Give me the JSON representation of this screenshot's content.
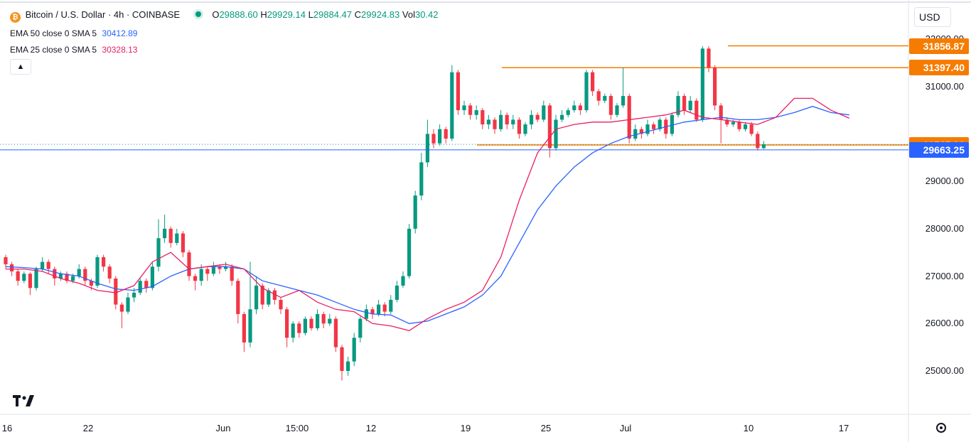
{
  "header": {
    "symbol": "Bitcoin / U.S. Dollar · 4h · COINBASE",
    "o_label": "O",
    "o": "29888.60",
    "h_label": "H",
    "h": "29929.14",
    "l_label": "L",
    "l": "29884.47",
    "c_label": "C",
    "c": "29924.83",
    "vol_label": "Vol",
    "vol": "30.42"
  },
  "indicators": [
    {
      "label": "EMA 50 close 0 SMA 5",
      "value": "30412.89",
      "color": "#2962ff"
    },
    {
      "label": "EMA 25 close 0 SMA 5",
      "value": "30328.13",
      "color": "#e91e63"
    }
  ],
  "currency": "USD",
  "price_labels": [
    {
      "value": "31856.87",
      "color": "#f57c00"
    },
    {
      "value": "31397.40",
      "color": "#f57c00"
    },
    {
      "value": "29767.00",
      "color": "#f57c00"
    },
    {
      "value": "29663.25",
      "color": "#2962ff"
    }
  ],
  "colors": {
    "up": "#089981",
    "down": "#f23645",
    "ema50": "#2962ff",
    "ema25": "#e91e63",
    "level": "#f57c00"
  },
  "chart_data": {
    "type": "candlestick",
    "y_ticks": [
      "32000.00",
      "31000.00",
      "29000.00",
      "28000.00",
      "27000.00",
      "26000.00",
      "25000.00"
    ],
    "x_ticks": [
      "16",
      "22",
      "Jun",
      "15:00",
      "12",
      "19",
      "25",
      "Jul",
      "10",
      "17"
    ],
    "ylim": [
      24400,
      32500
    ],
    "grid": false,
    "horizontal_levels": [
      31856.87,
      31397.4,
      29767.0
    ],
    "last_price_line": 29663.25,
    "ema_50": [
      [
        0,
        27200
      ],
      [
        3,
        27180
      ],
      [
        6,
        27150
      ],
      [
        9,
        27050
      ],
      [
        12,
        27000
      ],
      [
        15,
        26850
      ],
      [
        18,
        26730
      ],
      [
        21,
        26700
      ],
      [
        24,
        26780
      ],
      [
        27,
        27000
      ],
      [
        30,
        27150
      ],
      [
        33,
        27200
      ],
      [
        36,
        27200
      ],
      [
        39,
        27150
      ],
      [
        42,
        26900
      ],
      [
        45,
        26800
      ],
      [
        48,
        26700
      ],
      [
        51,
        26600
      ],
      [
        54,
        26450
      ],
      [
        57,
        26300
      ],
      [
        60,
        26200
      ],
      [
        63,
        26180
      ],
      [
        66,
        26000
      ],
      [
        69,
        26050
      ],
      [
        72,
        26200
      ],
      [
        75,
        26350
      ],
      [
        78,
        26600
      ],
      [
        81,
        27000
      ],
      [
        84,
        27700
      ],
      [
        87,
        28400
      ],
      [
        90,
        28900
      ],
      [
        93,
        29300
      ],
      [
        96,
        29600
      ],
      [
        99,
        29800
      ],
      [
        102,
        29950
      ],
      [
        105,
        30050
      ],
      [
        108,
        30150
      ],
      [
        111,
        30250
      ],
      [
        114,
        30300
      ],
      [
        117,
        30350
      ],
      [
        120,
        30300
      ],
      [
        123,
        30300
      ],
      [
        126,
        30350
      ],
      [
        129,
        30450
      ],
      [
        132,
        30580
      ],
      [
        135,
        30450
      ],
      [
        138,
        30400
      ]
    ],
    "ema_25": [
      [
        0,
        27150
      ],
      [
        3,
        27150
      ],
      [
        6,
        27100
      ],
      [
        9,
        26950
      ],
      [
        12,
        26850
      ],
      [
        15,
        26700
      ],
      [
        18,
        26650
      ],
      [
        21,
        26800
      ],
      [
        24,
        27300
      ],
      [
        27,
        27500
      ],
      [
        30,
        27150
      ],
      [
        33,
        27200
      ],
      [
        36,
        27250
      ],
      [
        39,
        27150
      ],
      [
        42,
        26750
      ],
      [
        45,
        26550
      ],
      [
        48,
        26700
      ],
      [
        51,
        26450
      ],
      [
        54,
        26300
      ],
      [
        57,
        26250
      ],
      [
        60,
        26000
      ],
      [
        63,
        25950
      ],
      [
        66,
        25850
      ],
      [
        69,
        26100
      ],
      [
        72,
        26300
      ],
      [
        75,
        26450
      ],
      [
        78,
        26700
      ],
      [
        81,
        27400
      ],
      [
        84,
        28600
      ],
      [
        87,
        29600
      ],
      [
        90,
        30100
      ],
      [
        93,
        30200
      ],
      [
        96,
        30250
      ],
      [
        99,
        30250
      ],
      [
        102,
        30300
      ],
      [
        105,
        30350
      ],
      [
        108,
        30400
      ],
      [
        111,
        30500
      ],
      [
        114,
        30350
      ],
      [
        117,
        30300
      ],
      [
        120,
        30250
      ],
      [
        123,
        30200
      ],
      [
        126,
        30350
      ],
      [
        129,
        30750
      ],
      [
        132,
        30750
      ],
      [
        135,
        30500
      ],
      [
        138,
        30330
      ]
    ],
    "candles": [
      [
        27400,
        27250,
        27450,
        27150
      ],
      [
        27250,
        27100,
        27300,
        27000
      ],
      [
        27100,
        26900,
        27150,
        26800
      ],
      [
        26900,
        27050,
        27100,
        26850
      ],
      [
        27050,
        26750,
        27080,
        26600
      ],
      [
        26750,
        27150,
        27200,
        26700
      ],
      [
        27150,
        27300,
        27400,
        27100
      ],
      [
        27300,
        27150,
        27350,
        27050
      ],
      [
        27150,
        26950,
        27200,
        26800
      ],
      [
        26950,
        27050,
        27100,
        26900
      ],
      [
        27050,
        26900,
        27100,
        26850
      ],
      [
        26900,
        27000,
        27050,
        26850
      ],
      [
        27000,
        27150,
        27250,
        26950
      ],
      [
        27150,
        26900,
        27200,
        26800
      ],
      [
        26900,
        26800,
        26950,
        26700
      ],
      [
        26800,
        27400,
        27450,
        26750
      ],
      [
        27400,
        27200,
        27450,
        27100
      ],
      [
        27200,
        26950,
        27250,
        26850
      ],
      [
        26950,
        26400,
        27000,
        26300
      ],
      [
        26400,
        26250,
        26450,
        25900
      ],
      [
        26250,
        26550,
        26650,
        26200
      ],
      [
        26550,
        26650,
        26750,
        26450
      ],
      [
        26650,
        26900,
        26950,
        26600
      ],
      [
        26900,
        26750,
        26950,
        26650
      ],
      [
        26750,
        27200,
        27300,
        26700
      ],
      [
        27200,
        27800,
        28200,
        27100
      ],
      [
        27800,
        28000,
        28300,
        27700
      ],
      [
        28000,
        27700,
        28050,
        27600
      ],
      [
        27700,
        27900,
        28000,
        27650
      ],
      [
        27900,
        27500,
        27950,
        27400
      ],
      [
        27500,
        27000,
        27550,
        26900
      ],
      [
        27000,
        26900,
        27050,
        26700
      ],
      [
        26900,
        27150,
        27250,
        26800
      ],
      [
        27150,
        27050,
        27200,
        26900
      ],
      [
        27050,
        27200,
        27300,
        27000
      ],
      [
        27200,
        27150,
        27250,
        27050
      ],
      [
        27150,
        27200,
        27300,
        27100
      ],
      [
        27200,
        26900,
        27250,
        26800
      ],
      [
        26900,
        26200,
        26950,
        26000
      ],
      [
        26200,
        25600,
        26250,
        25400
      ],
      [
        25600,
        26300,
        27300,
        25500
      ],
      [
        26300,
        26800,
        27000,
        26200
      ],
      [
        26800,
        26400,
        26850,
        26300
      ],
      [
        26400,
        26700,
        26750,
        26350
      ],
      [
        26700,
        26500,
        26750,
        26400
      ],
      [
        26500,
        26300,
        26550,
        26200
      ],
      [
        26300,
        25700,
        26350,
        25500
      ],
      [
        25700,
        26000,
        26050,
        25600
      ],
      [
        26000,
        25800,
        26050,
        25700
      ],
      [
        25800,
        26100,
        26150,
        25750
      ],
      [
        26100,
        25900,
        26150,
        25850
      ],
      [
        25900,
        26200,
        26300,
        25850
      ],
      [
        26200,
        26000,
        26250,
        25900
      ],
      [
        26000,
        26100,
        26200,
        25950
      ],
      [
        26100,
        25500,
        26150,
        25400
      ],
      [
        25500,
        25000,
        25550,
        24800
      ],
      [
        25000,
        25200,
        25300,
        24900
      ],
      [
        25200,
        25700,
        25800,
        25100
      ],
      [
        25700,
        26100,
        26150,
        25600
      ],
      [
        26100,
        26300,
        26400,
        26050
      ],
      [
        26300,
        26200,
        26350,
        26100
      ],
      [
        26200,
        26400,
        26500,
        26150
      ],
      [
        26400,
        26250,
        26450,
        26150
      ],
      [
        26250,
        26500,
        26600,
        26200
      ],
      [
        26500,
        26800,
        26900,
        26450
      ],
      [
        26800,
        27000,
        27100,
        26750
      ],
      [
        27000,
        28000,
        28100,
        26950
      ],
      [
        28000,
        28700,
        28800,
        27900
      ],
      [
        28700,
        29400,
        29600,
        28600
      ],
      [
        29400,
        30000,
        30300,
        29300
      ],
      [
        30000,
        29800,
        30100,
        29700
      ],
      [
        29800,
        30100,
        30200,
        29750
      ],
      [
        30100,
        29900,
        30150,
        29800
      ],
      [
        29900,
        31300,
        31450,
        29850
      ],
      [
        31300,
        30500,
        31350,
        30400
      ],
      [
        30500,
        30600,
        30700,
        30400
      ],
      [
        30600,
        30400,
        30650,
        30300
      ],
      [
        30400,
        30500,
        30600,
        30300
      ],
      [
        30500,
        30200,
        30550,
        30100
      ],
      [
        30200,
        30300,
        30400,
        30100
      ],
      [
        30300,
        30100,
        30350,
        30000
      ],
      [
        30100,
        30400,
        30500,
        30050
      ],
      [
        30400,
        30200,
        30450,
        30100
      ],
      [
        30200,
        30300,
        30400,
        30100
      ],
      [
        30300,
        30000,
        30350,
        29900
      ],
      [
        30000,
        30200,
        30250,
        29950
      ],
      [
        30200,
        30400,
        30500,
        30100
      ],
      [
        30400,
        30300,
        30450,
        30250
      ],
      [
        30300,
        30600,
        30700,
        30250
      ],
      [
        30600,
        29700,
        30650,
        29500
      ],
      [
        29700,
        30300,
        30400,
        29650
      ],
      [
        30300,
        30400,
        30500,
        30250
      ],
      [
        30400,
        30500,
        30550,
        30350
      ],
      [
        30500,
        30600,
        30700,
        30450
      ],
      [
        30600,
        30500,
        30650,
        30400
      ],
      [
        30500,
        31300,
        31350,
        30450
      ],
      [
        31300,
        30900,
        31350,
        30800
      ],
      [
        30900,
        30700,
        30950,
        30600
      ],
      [
        30700,
        30800,
        30850,
        30650
      ],
      [
        30800,
        30400,
        30850,
        30300
      ],
      [
        30400,
        30600,
        30650,
        30350
      ],
      [
        30600,
        30800,
        31400,
        30550
      ],
      [
        30800,
        29900,
        30850,
        29800
      ],
      [
        29900,
        30100,
        30200,
        29850
      ],
      [
        30100,
        30000,
        30150,
        29900
      ],
      [
        30000,
        30200,
        30300,
        29950
      ],
      [
        30200,
        30100,
        30250,
        30000
      ],
      [
        30100,
        30300,
        30350,
        30050
      ],
      [
        30300,
        30000,
        30350,
        29900
      ],
      [
        30000,
        30400,
        30450,
        29950
      ],
      [
        30400,
        30800,
        30900,
        30350
      ],
      [
        30800,
        30500,
        30850,
        30400
      ],
      [
        30500,
        30700,
        30800,
        30450
      ],
      [
        30700,
        30300,
        30750,
        30250
      ],
      [
        30300,
        31800,
        31850,
        30250
      ],
      [
        31800,
        31400,
        31850,
        31300
      ],
      [
        31400,
        30600,
        31450,
        30500
      ],
      [
        30600,
        30300,
        30650,
        29800
      ],
      [
        30300,
        30200,
        30350,
        30150
      ],
      [
        30200,
        30250,
        30300,
        30150
      ],
      [
        30250,
        30100,
        30300,
        30050
      ],
      [
        30100,
        30200,
        30250,
        30050
      ],
      [
        30200,
        30000,
        30250,
        29950
      ],
      [
        30000,
        29700,
        30050,
        29650
      ],
      [
        29700,
        29780,
        29850,
        29680
      ]
    ]
  }
}
